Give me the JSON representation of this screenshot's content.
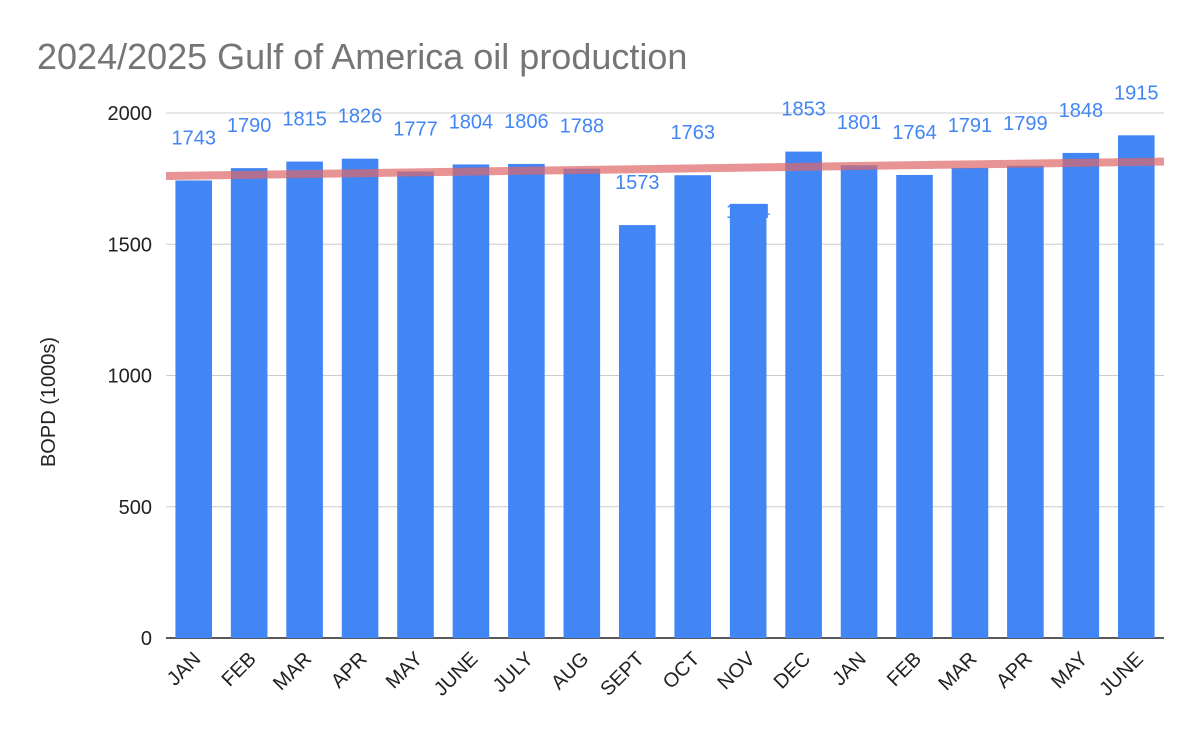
{
  "chart_data": {
    "type": "bar",
    "title": "2024/2025 Gulf of America oil production",
    "xlabel": "",
    "ylabel": "BOPD (1000s)",
    "ylim": [
      0,
      2000
    ],
    "yticks": [
      0,
      500,
      1000,
      1500,
      2000
    ],
    "grid": true,
    "legend": "none",
    "categories": [
      "JAN",
      "FEB",
      "MAR",
      "APR",
      "MAY",
      "JUNE",
      "JULY",
      "AUG",
      "SEPT",
      "OCT",
      "NOV",
      "DEC",
      "JAN",
      "FEB",
      "MAR",
      "APR",
      "MAY",
      "JUNE"
    ],
    "values": [
      1743,
      1790,
      1815,
      1826,
      1777,
      1804,
      1806,
      1788,
      1573,
      1763,
      1654,
      1853,
      1801,
      1764,
      1791,
      1799,
      1848,
      1915
    ],
    "trendline": {
      "type": "linear",
      "start_value": 1760,
      "end_value": 1815
    },
    "colors": {
      "bar": "#4285f4",
      "label": "#4285f4",
      "trendline": "#e06666",
      "title": "#757575",
      "grid": "#cccccc",
      "axis": "#222222"
    }
  }
}
